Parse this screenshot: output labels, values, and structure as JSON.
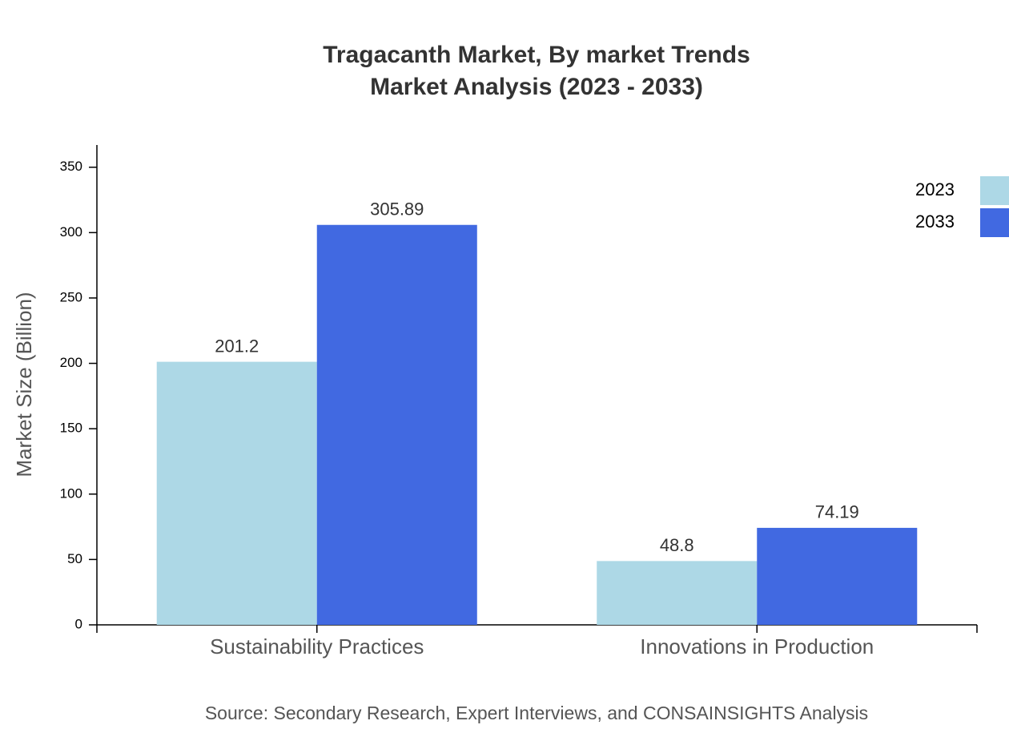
{
  "chart_data": {
    "type": "bar",
    "title": "Tragacanth Market, By market Trends",
    "subtitle": "Market Analysis (2023 - 2033)",
    "y_label": "Market Size (Billion)",
    "source": "Source: Secondary Research, Expert Interviews, and CONSAINSIGHTS Analysis",
    "categories": [
      "Sustainability Practices",
      "Innovations in Production"
    ],
    "series": [
      {
        "name": "2023",
        "color": "#add8e6",
        "values": [
          201.2,
          48.8
        ]
      },
      {
        "name": "2033",
        "color": "#4169e1",
        "values": [
          305.89,
          74.19
        ]
      }
    ],
    "ylim": [
      0,
      367
    ],
    "yticks": [
      0,
      50,
      100,
      150,
      200,
      250,
      300,
      350
    ],
    "legend": "top-right"
  }
}
